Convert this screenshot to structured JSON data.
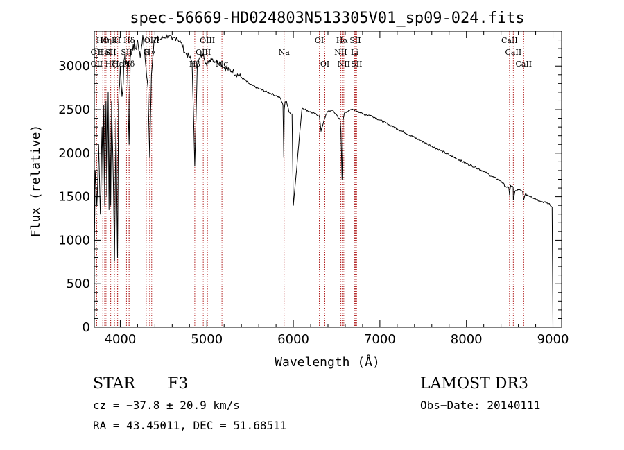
{
  "chart_data": {
    "type": "line",
    "title": "spec-56669-HD024803N513305V01_sp09-024.fits",
    "xlabel": "Wavelength (Å)",
    "ylabel": "Flux (relative)",
    "xlim": [
      3700,
      9100
    ],
    "ylim": [
      0,
      3400
    ],
    "x_ticks": [
      4000,
      5000,
      6000,
      7000,
      8000,
      9000
    ],
    "x_tick_labels": [
      "4000",
      "5000",
      "6000",
      "7000",
      "8000",
      "9000"
    ],
    "y_ticks": [
      0,
      500,
      1000,
      1500,
      2000,
      2500,
      3000
    ],
    "y_tick_labels": [
      "0",
      "500",
      "1000",
      "1500",
      "2000",
      "2500",
      "3000"
    ],
    "grid": false,
    "series": [
      {
        "color": "#000000",
        "x": [
          3700,
          3710,
          3730,
          3750,
          3770,
          3790,
          3800,
          3810,
          3820,
          3835,
          3845,
          3860,
          3870,
          3880,
          3889,
          3900,
          3920,
          3933,
          3950,
          3968,
          3980,
          4000,
          4020,
          4050,
          4080,
          4102,
          4115,
          4130,
          4150,
          4180,
          4200,
          4230,
          4260,
          4290,
          4320,
          4340,
          4360,
          4390,
          4420,
          4450,
          4500,
          4550,
          4600,
          4650,
          4700,
          4750,
          4800,
          4830,
          4861,
          4890,
          4920,
          4960,
          5000,
          5050,
          5100,
          5150,
          5200,
          5300,
          5400,
          5500,
          5600,
          5700,
          5800,
          5850,
          5880,
          5890,
          5895,
          5905,
          5920,
          5950,
          5985,
          6000,
          6100,
          6200,
          6300,
          6320,
          6360,
          6400,
          6450,
          6500,
          6540,
          6550,
          6563,
          6575,
          6590,
          6620,
          6650,
          6700,
          6750,
          6800,
          6900,
          7000,
          7100,
          7200,
          7300,
          7400,
          7500,
          7600,
          7700,
          7800,
          7900,
          8000,
          8100,
          8200,
          8300,
          8400,
          8450,
          8490,
          8498,
          8510,
          8540,
          8542,
          8560,
          8600,
          8650,
          8662,
          8680,
          8750,
          8850,
          8950,
          8990,
          9000
        ],
        "y": [
          800,
          1800,
          1400,
          2100,
          1300,
          2300,
          1600,
          2550,
          1400,
          2600,
          1500,
          2700,
          1350,
          2500,
          1400,
          2600,
          1650,
          760,
          2400,
          800,
          2550,
          3000,
          2650,
          3100,
          3050,
          2100,
          3100,
          3150,
          3250,
          3200,
          3300,
          3100,
          3350,
          3050,
          2750,
          1950,
          2900,
          3300,
          3320,
          3300,
          3330,
          3350,
          3300,
          3330,
          3270,
          3150,
          3100,
          3050,
          1850,
          3000,
          3100,
          3150,
          3000,
          3100,
          3050,
          3050,
          2980,
          2940,
          2870,
          2790,
          2740,
          2700,
          2660,
          2630,
          2550,
          1950,
          2500,
          2590,
          2600,
          2470,
          2450,
          1400,
          2520,
          2470,
          2430,
          2250,
          2400,
          2480,
          2490,
          2440,
          2380,
          2250,
          1700,
          2380,
          2460,
          2480,
          2490,
          2500,
          2480,
          2450,
          2430,
          2380,
          2330,
          2280,
          2230,
          2180,
          2130,
          2080,
          2030,
          1980,
          1930,
          1880,
          1840,
          1790,
          1730,
          1680,
          1620,
          1600,
          1520,
          1630,
          1610,
          1460,
          1560,
          1580,
          1560,
          1460,
          1530,
          1500,
          1450,
          1420,
          1380,
          0
        ]
      }
    ],
    "line_markers": [
      {
        "wl": 3798,
        "row": 1,
        "label": "HΘ"
      },
      {
        "wl": 3727,
        "row": 2,
        "label": "OII"
      },
      {
        "wl": 3727,
        "row": 3,
        "label": "OII"
      },
      {
        "wl": 3835,
        "row": 1,
        "label": "Hη"
      },
      {
        "wl": 3820,
        "row": 2,
        "label": "HeI"
      },
      {
        "wl": 3889,
        "row": 3,
        "label": "Hζ"
      },
      {
        "wl": 3933,
        "row": 1,
        "label": "K"
      },
      {
        "wl": 3968,
        "row": 1,
        "label": "H"
      },
      {
        "wl": 3889,
        "row": 2,
        "label": "SII"
      },
      {
        "wl": 3970,
        "row": 3,
        "label": "Hε"
      },
      {
        "wl": 4102,
        "row": 1,
        "label": "Hδ"
      },
      {
        "wl": 4072,
        "row": 2,
        "label": "SII"
      },
      {
        "wl": 4102,
        "row": 3,
        "label": "Hδ"
      },
      {
        "wl": 4300,
        "row": 2,
        "label": "G"
      },
      {
        "wl": 4340,
        "row": 2,
        "label": "Hγ"
      },
      {
        "wl": 4363,
        "row": 1,
        "label": "OIII"
      },
      {
        "wl": 4861,
        "row": 3,
        "label": "Hβ"
      },
      {
        "wl": 4959,
        "row": 2,
        "label": "OIII"
      },
      {
        "wl": 5007,
        "row": 1,
        "label": "OIII"
      },
      {
        "wl": 5175,
        "row": 3,
        "label": "Mg"
      },
      {
        "wl": 5893,
        "row": 2,
        "label": "Na"
      },
      {
        "wl": 6300,
        "row": 1,
        "label": "OI"
      },
      {
        "wl": 6364,
        "row": 3,
        "label": "OI"
      },
      {
        "wl": 6563,
        "row": 1,
        "label": "Hα"
      },
      {
        "wl": 6548,
        "row": 2,
        "label": "NII"
      },
      {
        "wl": 6583,
        "row": 3,
        "label": "NII"
      },
      {
        "wl": 6716,
        "row": 1,
        "label": "SII"
      },
      {
        "wl": 6708,
        "row": 2,
        "label": "Li"
      },
      {
        "wl": 6731,
        "row": 3,
        "label": "SII"
      },
      {
        "wl": 8498,
        "row": 1,
        "label": "CaII"
      },
      {
        "wl": 8542,
        "row": 2,
        "label": "CaII"
      },
      {
        "wl": 8662,
        "row": 3,
        "label": "CaII"
      }
    ],
    "marker_color": "#b22222"
  },
  "info": {
    "object_type": "STAR",
    "subclass": "F3",
    "survey": "LAMOST DR3",
    "cz_line": "cz = −37.8 ± 20.9 km/s",
    "obs_date_line": "Obs−Date: 20140111",
    "radec_line": "RA =  43.45011, DEC =  51.68511"
  }
}
